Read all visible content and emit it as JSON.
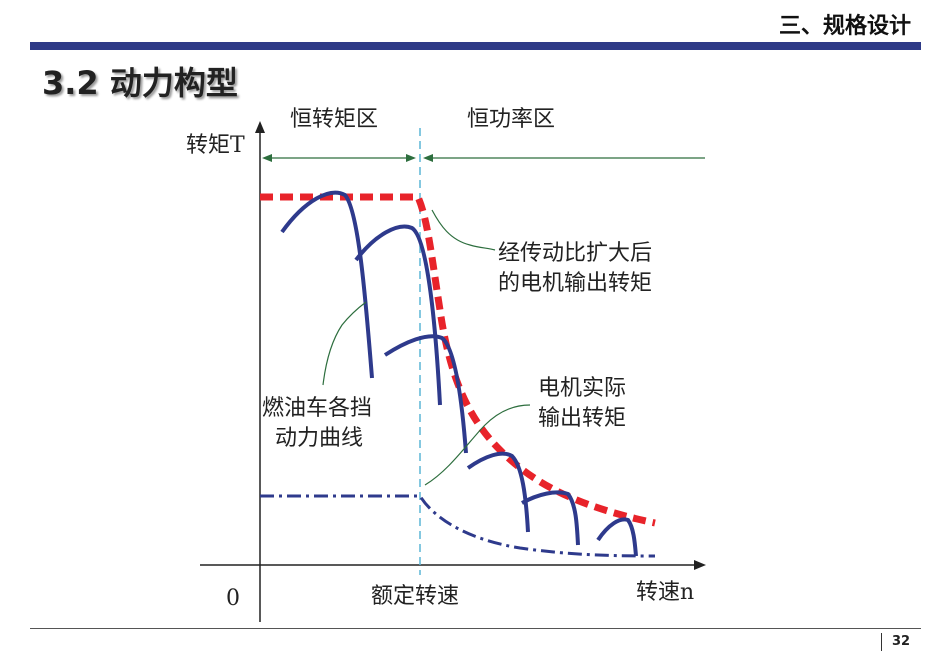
{
  "header": {
    "section": "三、规格设计",
    "title": "3.2 动力构型"
  },
  "footer": {
    "page_number": "32"
  },
  "diagram": {
    "y_axis_label": "转矩T",
    "x_axis_label": "转速n",
    "origin_label": "0",
    "rated_speed_label": "额定转速",
    "region_constant_torque": "恒转矩区",
    "region_constant_power": "恒功率区",
    "callout_amplified": [
      "经传动比扩大后",
      "的电机输出转矩"
    ],
    "callout_actual": [
      "电机实际",
      "输出转矩"
    ],
    "callout_ice": [
      "燃油车各挡",
      "动力曲线"
    ],
    "colors": {
      "accent": "#2e3a87",
      "motor_amplified": "#e8232a",
      "gear_curves": "#2e3a8c",
      "leader": "#2d6e3e",
      "rated_line": "#5bb5d6"
    }
  }
}
